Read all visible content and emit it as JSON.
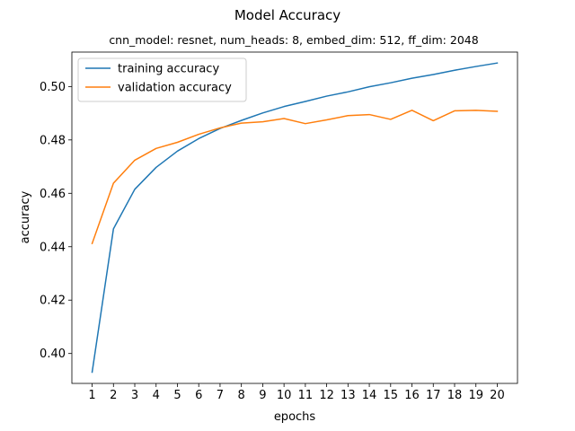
{
  "chart_data": {
    "type": "line",
    "title": "Model Accuracy",
    "subtitle": "cnn_model: resnet, num_heads: 8, embed_dim: 512, ff_dim: 2048",
    "xlabel": "epochs",
    "ylabel": "accuracy",
    "xlim": [
      0.05,
      20.95
    ],
    "ylim": [
      0.3888,
      0.5129
    ],
    "x_ticks": [
      1,
      2,
      3,
      4,
      5,
      6,
      7,
      8,
      9,
      10,
      11,
      12,
      13,
      14,
      15,
      16,
      17,
      18,
      19,
      20
    ],
    "y_ticks": [
      0.4,
      0.42,
      0.44,
      0.46,
      0.48,
      0.5
    ],
    "y_tick_labels": [
      "0.40",
      "0.42",
      "0.44",
      "0.46",
      "0.48",
      "0.50"
    ],
    "grid": false,
    "legend_position": "top-left",
    "x": [
      1,
      2,
      3,
      4,
      5,
      6,
      7,
      8,
      9,
      10,
      11,
      12,
      13,
      14,
      15,
      16,
      17,
      18,
      19,
      20
    ],
    "series": [
      {
        "name": "training accuracy",
        "color": "#1f77b4",
        "values": [
          0.393,
          0.4467,
          0.4615,
          0.4697,
          0.4758,
          0.4805,
          0.4843,
          0.4873,
          0.4901,
          0.4925,
          0.4944,
          0.4964,
          0.498,
          0.4999,
          0.5014,
          0.5031,
          0.5045,
          0.5061,
          0.5075,
          0.5088
        ]
      },
      {
        "name": "validation accuracy",
        "color": "#ff7f0e",
        "values": [
          0.4412,
          0.4638,
          0.4724,
          0.4768,
          0.4791,
          0.4821,
          0.4845,
          0.4863,
          0.4868,
          0.488,
          0.4861,
          0.4875,
          0.4891,
          0.4895,
          0.4877,
          0.4911,
          0.4872,
          0.4909,
          0.4911,
          0.4907
        ]
      }
    ]
  }
}
